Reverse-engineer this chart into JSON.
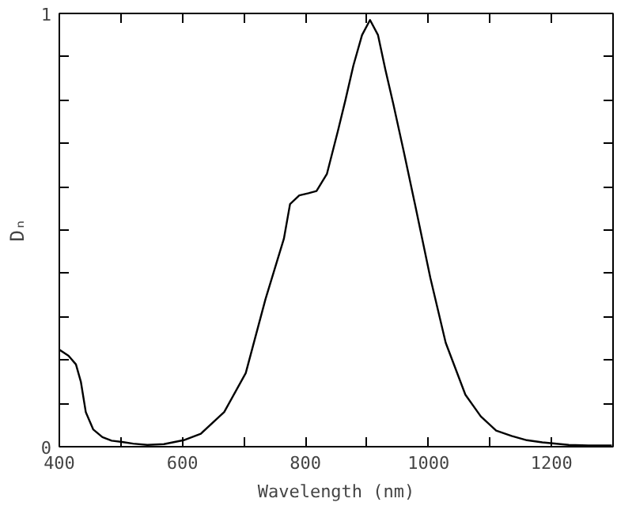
{
  "chart_data": {
    "type": "line",
    "xlabel": "Wavelength (nm)",
    "ylabel": "Dₙ",
    "xlim": [
      400,
      1300
    ],
    "ylim": [
      0,
      1
    ],
    "xticks": [
      400,
      {
        "value": 500,
        "label": null
      },
      600,
      {
        "value": 700,
        "label": null
      },
      800,
      {
        "value": 900,
        "label": null
      },
      1000,
      {
        "value": 1100,
        "label": null
      },
      1200,
      {
        "value": 1300,
        "label": null
      }
    ],
    "yticks": [
      0,
      {
        "value": 0.1,
        "label": null
      },
      {
        "value": 0.2,
        "label": null
      },
      {
        "value": 0.3,
        "label": null
      },
      {
        "value": 0.4,
        "label": null
      },
      {
        "value": 0.5,
        "label": null
      },
      {
        "value": 0.6,
        "label": null
      },
      {
        "value": 0.7,
        "label": null
      },
      {
        "value": 0.8,
        "label": null
      },
      {
        "value": 0.9,
        "label": null
      },
      1
    ],
    "grid": false,
    "marker": "none",
    "line_style": "solid",
    "series": [
      {
        "color": "#000000",
        "x": [
          400,
          415,
          427,
          435,
          443,
          455,
          470,
          485,
          502,
          520,
          543,
          570,
          602,
          630,
          668,
          703,
          735,
          765,
          775,
          790,
          805,
          818,
          835,
          853,
          865,
          878,
          892,
          905,
          918,
          930,
          943,
          960,
          978,
          1003,
          1028,
          1060,
          1085,
          1110,
          1135,
          1160,
          1185,
          1228,
          1260,
          1298
        ],
        "values": [
          0.224,
          0.21,
          0.19,
          0.15,
          0.08,
          0.04,
          0.022,
          0.014,
          0.011,
          0.007,
          0.004,
          0.006,
          0.015,
          0.03,
          0.08,
          0.17,
          0.34,
          0.48,
          0.56,
          0.58,
          0.585,
          0.59,
          0.63,
          0.73,
          0.8,
          0.88,
          0.95,
          0.985,
          0.95,
          0.87,
          0.79,
          0.68,
          0.56,
          0.39,
          0.24,
          0.12,
          0.07,
          0.037,
          0.025,
          0.015,
          0.01,
          0.004,
          0.003,
          0.003
        ]
      }
    ]
  }
}
